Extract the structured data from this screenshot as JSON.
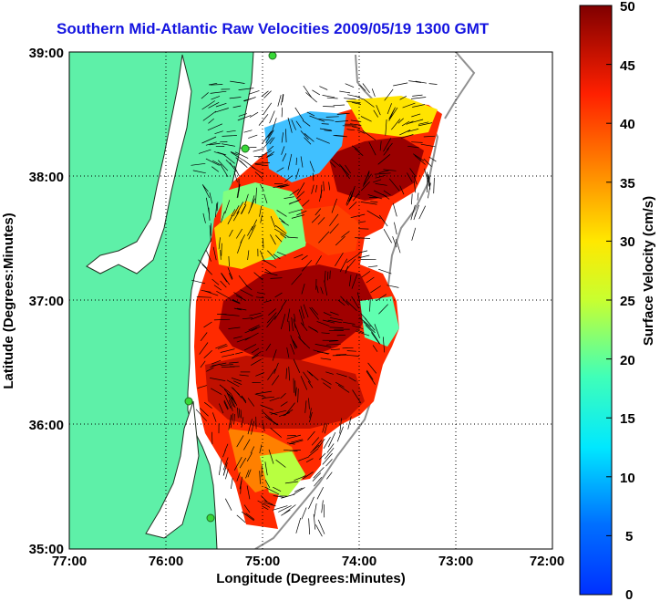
{
  "title": "Southern Mid-Atlantic Raw Velocities 2009/05/19 1300 GMT",
  "xaxis": {
    "label": "Longitude (Degrees:Minutes)",
    "ticks": [
      "77:00",
      "76:00",
      "75:00",
      "74:00",
      "73:00",
      "72:00"
    ]
  },
  "yaxis": {
    "label": "Latitude (Degrees:Minutes)",
    "ticks": [
      "39:00",
      "38:00",
      "37:00",
      "36:00",
      "35:00"
    ]
  },
  "colorbar": {
    "label": "Surface Velocity (cm/s)",
    "ticks": [
      "50",
      "45",
      "40",
      "35",
      "30",
      "25",
      "20",
      "15",
      "10",
      "5",
      "0"
    ]
  },
  "colors": {
    "land": "#5ef0a8",
    "title": "#1414e0",
    "station": "#38d838"
  },
  "chart_data": {
    "type": "heatmap",
    "variable": "surface current velocity (cm/s)",
    "x_range_deg_lon": [
      -77,
      -72
    ],
    "y_range_deg_lat": [
      35,
      39
    ],
    "color_range": [
      0,
      50
    ],
    "grid": true,
    "colormap": "jet"
  }
}
